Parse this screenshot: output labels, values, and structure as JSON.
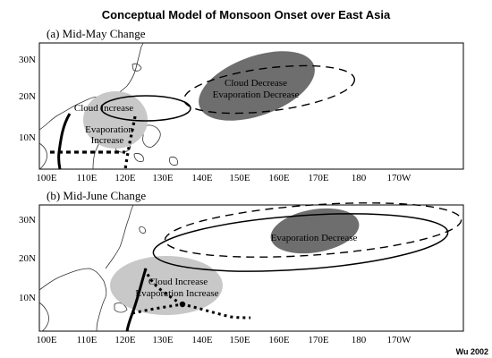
{
  "title": "Conceptual Model of Monsoon Onset over East Asia",
  "credit": "Wu 2002",
  "panels": [
    {
      "title": "(a) Mid-May Change",
      "lat_ticks": [
        "30N",
        "20N",
        "10N"
      ],
      "lon_ticks": [
        "100E",
        "110E",
        "120E",
        "130E",
        "140E",
        "150E",
        "160E",
        "170E",
        "180",
        "170W"
      ],
      "labels": {
        "cloud_increase": "Cloud Increase",
        "evap_increase_1": "Evaporation",
        "evap_increase_2": "Increase",
        "cloud_decrease": "Cloud Decrease",
        "evap_decrease": "Evaporation Decrease"
      }
    },
    {
      "title": "(b) Mid-June Change",
      "lat_ticks": [
        "30N",
        "20N",
        "10N"
      ],
      "lon_ticks": [
        "100E",
        "110E",
        "120E",
        "130E",
        "140E",
        "150E",
        "160E",
        "170E",
        "180",
        "170W"
      ],
      "labels": {
        "evap_decrease": "Evaporation Decrease",
        "cloud_increase": "Cloud Increase",
        "evap_increase": "Evaporation Increase"
      }
    }
  ],
  "colors": {
    "light_shade": "#c8c8c8",
    "dark_shade": "#6e6e6e",
    "line": "#000000"
  }
}
